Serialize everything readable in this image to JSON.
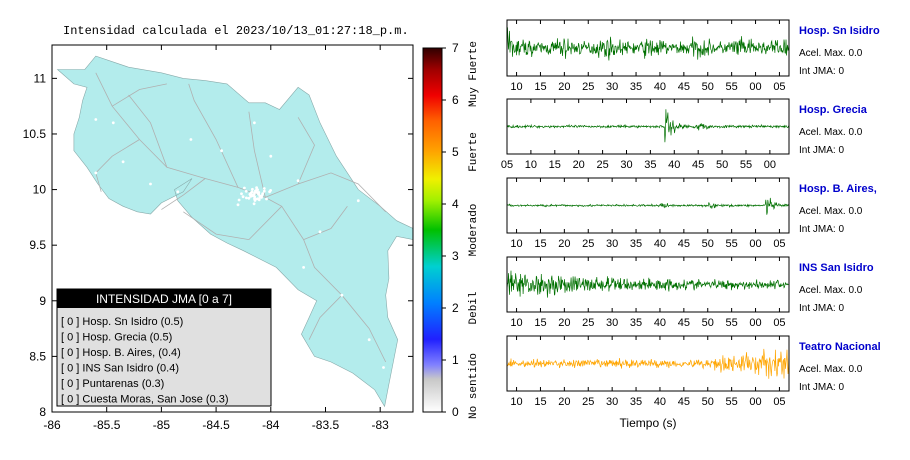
{
  "header": {
    "title": "Intensidad calculada el 2023/10/13_01:27:18_p.m."
  },
  "map": {
    "x_ticks": [
      "-86",
      "-85.5",
      "-85",
      "-84.5",
      "-84",
      "-83.5",
      "-83"
    ],
    "x_values": [
      -86,
      -85.5,
      -85,
      -84.5,
      -84,
      -83.5,
      -83
    ],
    "y_ticks": [
      "11",
      "10.5",
      "10",
      "9.5",
      "9",
      "8.5",
      "8"
    ],
    "y_values": [
      11,
      10.5,
      10,
      9.5,
      9,
      8.5,
      8
    ],
    "xlim": [
      -86,
      -82.7
    ],
    "ylim": [
      8,
      11.3
    ],
    "land_color": "#b3ecec",
    "road_color": "#b0b0b0"
  },
  "legend": {
    "title": "INTENSIDAD JMA [0 a 7]",
    "items": [
      "[ 0 ]  Hosp. Sn Isidro (0.5)",
      "[ 0 ]  Hosp. Grecia (0.5)",
      "[ 0 ]  Hosp. B. Aires, (0.4)",
      "[ 0 ]  INS San Isidro (0.4)",
      "[ 0 ]  Puntarenas (0.3)",
      "[ 0 ]  Cuesta Moras, San Jose (0.3)"
    ]
  },
  "colorbar": {
    "ticks": [
      "0",
      "1",
      "2",
      "3",
      "4",
      "5",
      "6",
      "7"
    ],
    "tick_values": [
      0,
      1,
      2,
      3,
      4,
      5,
      6,
      7
    ],
    "range": [
      0,
      7
    ],
    "labels": [
      "No sentido",
      "Debil",
      "Moderado",
      "Fuerte",
      "Muy Fuerte"
    ],
    "label_values": [
      0.5,
      2,
      3.5,
      5,
      6.5
    ]
  },
  "traces": {
    "xlabel": "Tiempo (s)",
    "acel_label": "Acel. Max. 0.0",
    "int_label": "Int JMA: 0",
    "stations": [
      {
        "name": "Hosp. Sn Isidro",
        "color": "#007000",
        "ticks": [
          "10",
          "15",
          "20",
          "25",
          "30",
          "35",
          "40",
          "45",
          "50",
          "55",
          "00",
          "05"
        ],
        "tick_values": [
          10,
          15,
          20,
          25,
          30,
          35,
          40,
          45,
          50,
          55,
          60,
          65
        ],
        "xlim": [
          8,
          67
        ]
      },
      {
        "name": "Hosp. Grecia",
        "color": "#007000",
        "ticks": [
          "05",
          "10",
          "15",
          "20",
          "25",
          "30",
          "35",
          "40",
          "45",
          "50",
          "55",
          "00"
        ],
        "tick_values": [
          5,
          10,
          15,
          20,
          25,
          30,
          35,
          40,
          45,
          50,
          55,
          60
        ],
        "xlim": [
          5,
          64
        ]
      },
      {
        "name": "Hosp. B. Aires,",
        "color": "#007000",
        "ticks": [
          "10",
          "15",
          "20",
          "25",
          "30",
          "35",
          "40",
          "45",
          "50",
          "55",
          "00",
          "05"
        ],
        "tick_values": [
          10,
          15,
          20,
          25,
          30,
          35,
          40,
          45,
          50,
          55,
          60,
          65
        ],
        "xlim": [
          8,
          67
        ]
      },
      {
        "name": "INS San Isidro",
        "color": "#007000",
        "ticks": [
          "10",
          "15",
          "20",
          "25",
          "30",
          "35",
          "40",
          "45",
          "50",
          "55",
          "00",
          "05"
        ],
        "tick_values": [
          10,
          15,
          20,
          25,
          30,
          35,
          40,
          45,
          50,
          55,
          60,
          65
        ],
        "xlim": [
          8,
          67
        ]
      },
      {
        "name": "Teatro Nacional",
        "color": "#ffa500",
        "ticks": [
          "10",
          "15",
          "20",
          "25",
          "30",
          "35",
          "40",
          "45",
          "50",
          "55",
          "00",
          "05"
        ],
        "tick_values": [
          10,
          15,
          20,
          25,
          30,
          35,
          40,
          45,
          50,
          55,
          60,
          65
        ],
        "xlim": [
          8,
          67
        ]
      }
    ]
  },
  "chart_data": [
    {
      "type": "scatter",
      "title": "Intensidad calculada el 2023/10/13_01:27:18_p.m.",
      "xlabel": "",
      "ylabel": "",
      "xlim": [
        -86,
        -82.7
      ],
      "ylim": [
        8,
        11.3
      ],
      "series": [
        {
          "name": "",
          "x": [],
          "y": []
        }
      ]
    },
    {
      "type": "line",
      "title": "",
      "xlabel": "Tiempo (s)",
      "series": [
        {
          "name": "Hosp. Sn Isidro",
          "values": []
        },
        {
          "name": "Hosp. Grecia",
          "values": []
        },
        {
          "name": "Hosp. B. Aires,",
          "values": []
        },
        {
          "name": "INS San Isidro",
          "values": []
        },
        {
          "name": "Teatro Nacional",
          "values": []
        }
      ]
    }
  ]
}
